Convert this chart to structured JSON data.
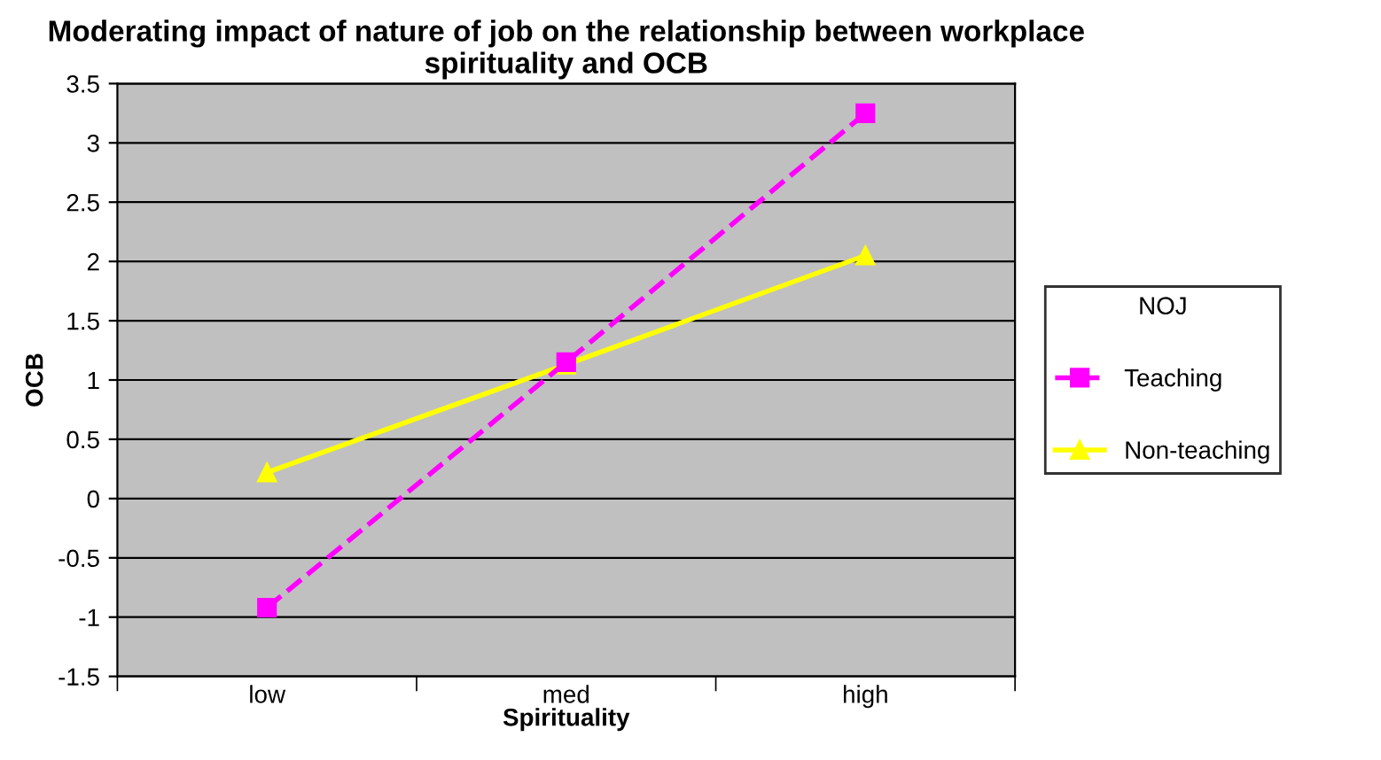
{
  "chart_data": {
    "type": "line",
    "title": "Moderating impact of nature of job on the relationship between workplace spirituality and OCB",
    "xlabel": "Spirituality",
    "ylabel": "OCB",
    "legend_title": "NOJ",
    "categories": [
      "low",
      "med",
      "high"
    ],
    "series": [
      {
        "name": "Teaching",
        "color": "#ff00ff",
        "marker": "square",
        "line_style": "dashed",
        "values": [
          -0.92,
          1.15,
          3.25
        ]
      },
      {
        "name": "Non-teaching",
        "color": "#ffff00",
        "marker": "triangle",
        "line_style": "solid",
        "values": [
          0.22,
          1.13,
          2.05
        ]
      }
    ],
    "ylim": [
      -1.5,
      3.5
    ],
    "yticks": [
      -1.5,
      -1,
      -0.5,
      0,
      0.5,
      1,
      1.5,
      2,
      2.5,
      3,
      3.5
    ],
    "grid": "y",
    "legend": "right"
  }
}
